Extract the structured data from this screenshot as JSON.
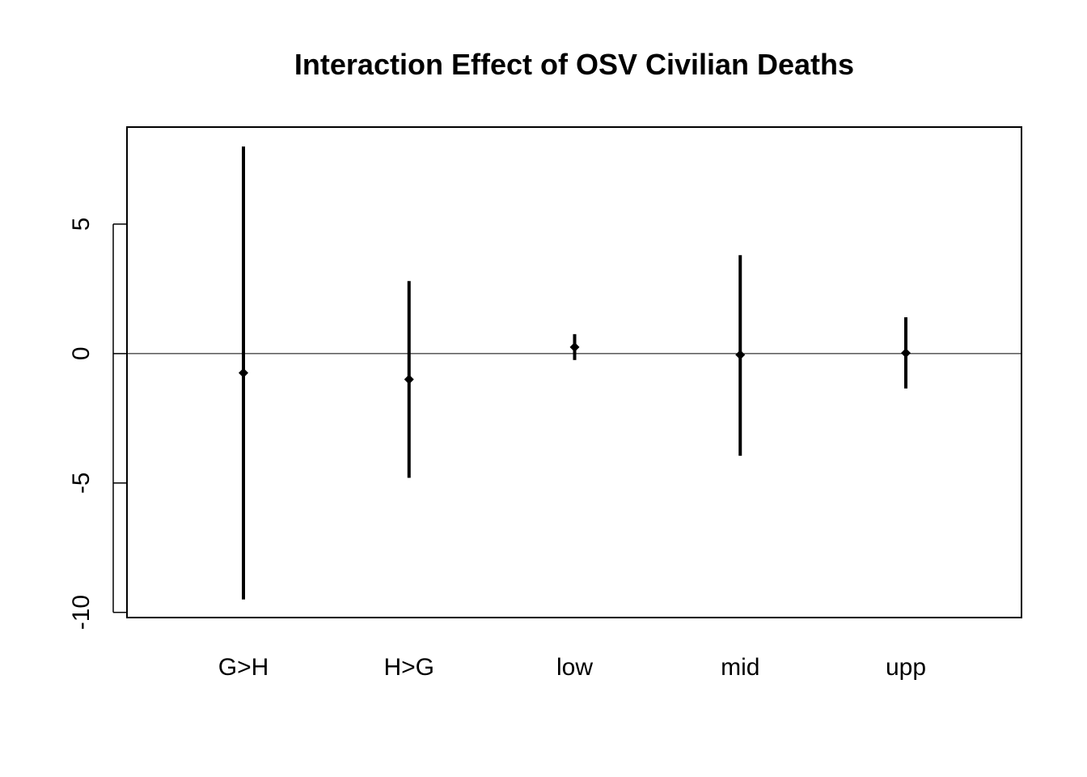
{
  "chart_data": {
    "type": "errorbar",
    "title": "Interaction Effect of OSV Civilian Deaths",
    "xlabel": "",
    "ylabel": "",
    "categories": [
      "G>H",
      "H>G",
      "low",
      "mid",
      "upp"
    ],
    "series": [
      {
        "estimates": [
          -0.75,
          -1.0,
          0.25,
          -0.05,
          0.02
        ],
        "lower": [
          -9.5,
          -4.8,
          -0.25,
          -3.95,
          -1.35
        ],
        "upper": [
          8.0,
          2.8,
          0.75,
          3.8,
          1.4
        ]
      }
    ],
    "yticks": [
      -10,
      -5,
      0,
      5
    ],
    "ytick_labels": [
      "-10",
      "-5",
      "0",
      "5"
    ],
    "ylim": [
      -10.2,
      8.75
    ],
    "reference_line": 0,
    "grid": false,
    "colors": {
      "marks": "#000000",
      "background": "#ffffff"
    }
  }
}
